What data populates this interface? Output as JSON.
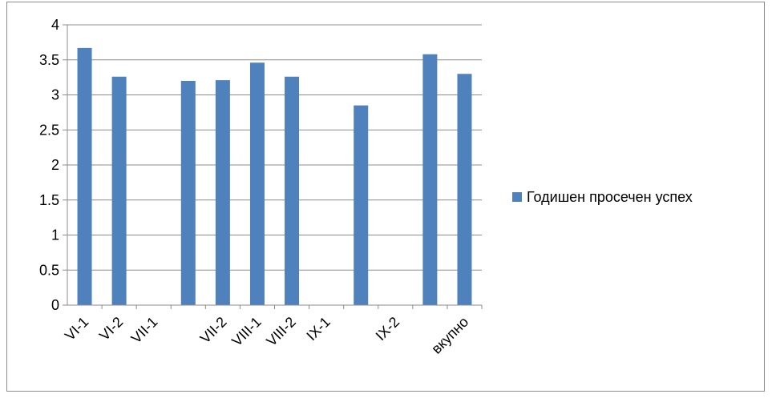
{
  "chart_data": {
    "type": "bar",
    "title": "",
    "xlabel": "",
    "ylabel": "",
    "categories": [
      "VI-1",
      "VI-2",
      "VII-1",
      "",
      "VII-2",
      "VIII-1",
      "VIII-2",
      "IX-1",
      "",
      "IX-2",
      "",
      "вкупно"
    ],
    "series": [
      {
        "name": "Годишен просечен успех",
        "color": "#4f81bd",
        "values": [
          3.67,
          3.26,
          null,
          3.2,
          3.21,
          3.46,
          3.26,
          null,
          2.85,
          null,
          3.58,
          3.3
        ]
      }
    ],
    "ylim": [
      0,
      4
    ],
    "yticks": [
      "0",
      "0.5",
      "1",
      "1.5",
      "2",
      "2.5",
      "3",
      "3.5",
      "4"
    ],
    "grid": true,
    "legend": "right"
  }
}
